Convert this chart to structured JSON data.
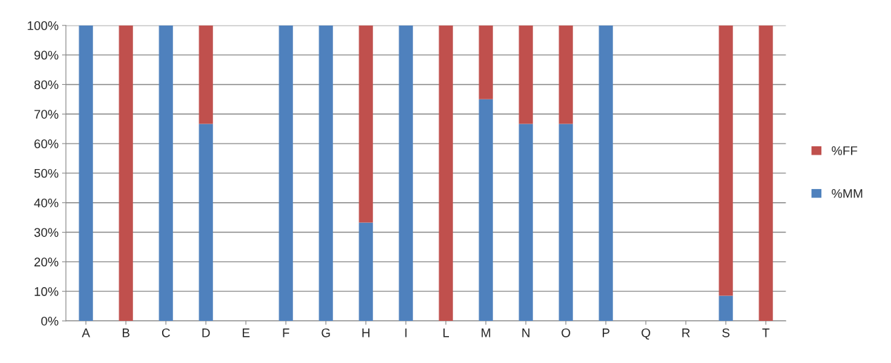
{
  "chart_data": {
    "type": "bar",
    "stacked": true,
    "categories": [
      "A",
      "B",
      "C",
      "D",
      "E",
      "F",
      "G",
      "H",
      "I",
      "L",
      "M",
      "N",
      "O",
      "P",
      "Q",
      "R",
      "S",
      "T"
    ],
    "series": [
      {
        "name": "%MM",
        "color": "#4f81bd",
        "values": [
          100,
          0,
          100,
          66.7,
          null,
          100,
          100,
          33.3,
          100,
          0,
          75,
          66.7,
          66.7,
          100,
          null,
          null,
          8.5,
          0
        ]
      },
      {
        "name": "%FF",
        "color": "#c0504d",
        "values": [
          0,
          100,
          0,
          33.3,
          null,
          0,
          0,
          66.7,
          0,
          100,
          25,
          33.3,
          33.3,
          0,
          null,
          null,
          91.5,
          100
        ]
      }
    ],
    "ylim": [
      0,
      100
    ],
    "yticks": [
      {
        "value": 0,
        "label": "0%"
      },
      {
        "value": 10,
        "label": "10%"
      },
      {
        "value": 20,
        "label": "20%"
      },
      {
        "value": 30,
        "label": "30%"
      },
      {
        "value": 40,
        "label": "40%"
      },
      {
        "value": 50,
        "label": "50%"
      },
      {
        "value": 60,
        "label": "60%"
      },
      {
        "value": 70,
        "label": "70%"
      },
      {
        "value": 80,
        "label": "80%"
      },
      {
        "value": 90,
        "label": "90%"
      },
      {
        "value": 100,
        "label": "100%"
      }
    ],
    "grid": "y",
    "legend": "right"
  }
}
